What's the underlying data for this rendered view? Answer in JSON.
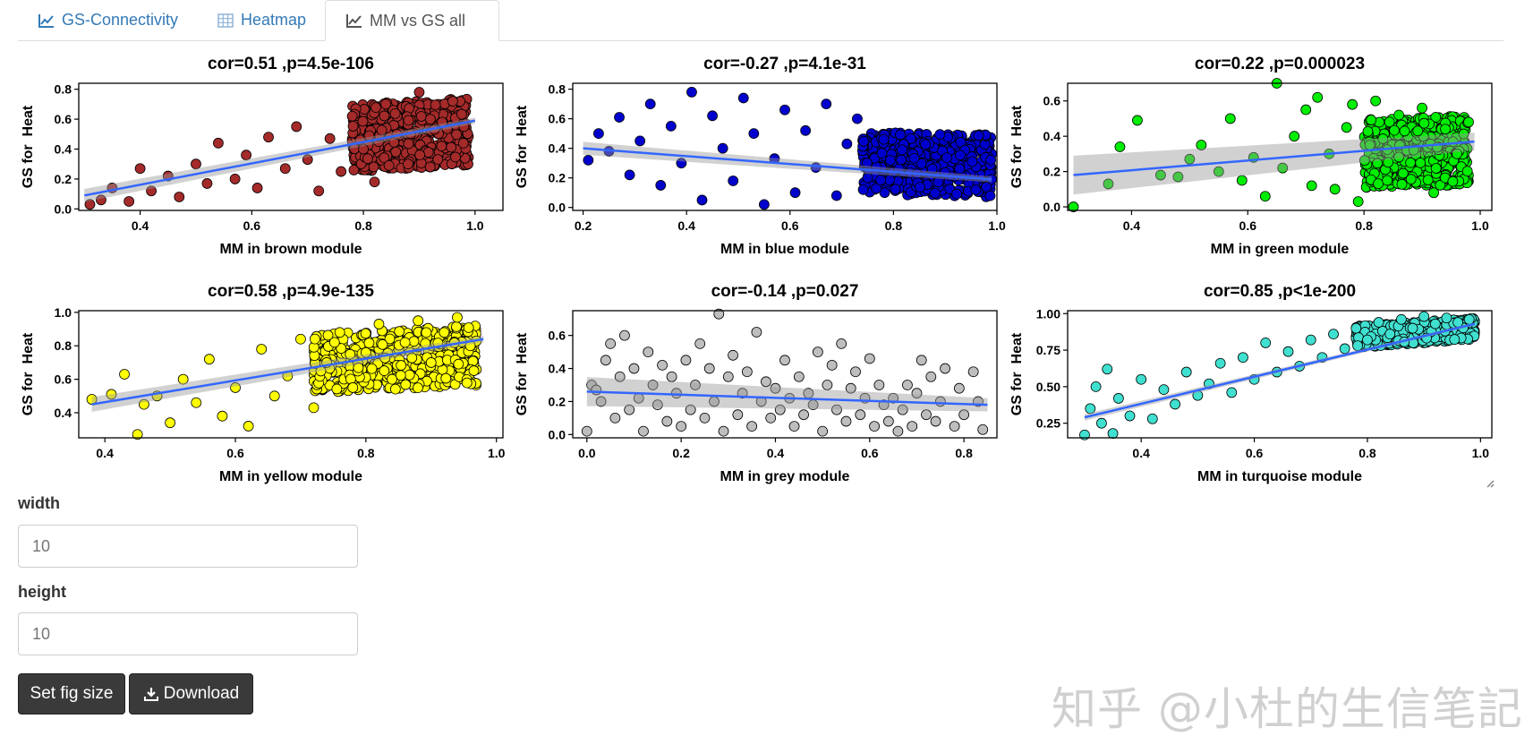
{
  "tabs": [
    {
      "label": "GS-Connectivity",
      "icon": "line-chart-icon"
    },
    {
      "label": "Heatmap",
      "icon": "grid-icon"
    },
    {
      "label": "MM vs GS all",
      "icon": "line-chart-icon"
    }
  ],
  "active_tab": 2,
  "form": {
    "width_label": "width",
    "width_placeholder": "10",
    "height_label": "height",
    "height_placeholder": "10"
  },
  "buttons": {
    "set_size": "Set fig size",
    "download": "Download"
  },
  "watermark": "知乎 @小杜的生信笔記",
  "chart_data": [
    {
      "type": "scatter",
      "module": "brown",
      "color": "#a52a2a",
      "title": "cor=0.51 ,p=4.5e-106",
      "xlabel": "MM in brown module",
      "ylabel": "GS for  Heat",
      "xlim": [
        0.29,
        1.05
      ],
      "ylim": [
        -0.01,
        0.84
      ],
      "xticks": [
        0.4,
        0.6,
        0.8,
        1.0
      ],
      "yticks": [
        0.0,
        0.2,
        0.4,
        0.6,
        0.8
      ],
      "trend": {
        "x1": 0.3,
        "y1": 0.09,
        "x2": 1.0,
        "y2": 0.59
      },
      "band": 0.02,
      "points": [
        [
          0.31,
          0.03
        ],
        [
          0.33,
          0.06
        ],
        [
          0.35,
          0.14
        ],
        [
          0.38,
          0.05
        ],
        [
          0.4,
          0.27
        ],
        [
          0.42,
          0.12
        ],
        [
          0.45,
          0.22
        ],
        [
          0.47,
          0.08
        ],
        [
          0.5,
          0.3
        ],
        [
          0.52,
          0.17
        ],
        [
          0.54,
          0.44
        ],
        [
          0.57,
          0.2
        ],
        [
          0.59,
          0.36
        ],
        [
          0.61,
          0.14
        ],
        [
          0.63,
          0.48
        ],
        [
          0.66,
          0.27
        ],
        [
          0.68,
          0.55
        ],
        [
          0.7,
          0.33
        ],
        [
          0.72,
          0.12
        ],
        [
          0.74,
          0.47
        ],
        [
          0.76,
          0.25
        ],
        [
          0.78,
          0.62
        ],
        [
          0.8,
          0.4
        ],
        [
          0.82,
          0.18
        ],
        [
          0.84,
          0.7
        ],
        [
          0.86,
          0.5
        ],
        [
          0.88,
          0.3
        ],
        [
          0.9,
          0.78
        ],
        [
          0.92,
          0.6
        ],
        [
          0.94,
          0.42
        ],
        [
          0.96,
          0.72
        ],
        [
          0.98,
          0.55
        ]
      ],
      "fill": {
        "x1": 0.78,
        "x2": 0.99,
        "y1": 0.17,
        "y2": 0.81
      }
    },
    {
      "type": "scatter",
      "module": "blue",
      "color": "#0000cd",
      "title": "cor=-0.27 ,p=4.1e-31",
      "xlabel": "MM in blue module",
      "ylabel": "GS for  Heat",
      "xlim": [
        0.18,
        1.0
      ],
      "ylim": [
        -0.02,
        0.84
      ],
      "xticks": [
        0.2,
        0.4,
        0.6,
        0.8,
        1.0
      ],
      "yticks": [
        0.0,
        0.2,
        0.4,
        0.6,
        0.8
      ],
      "trend": {
        "x1": 0.2,
        "y1": 0.4,
        "x2": 0.99,
        "y2": 0.19
      },
      "band": 0.02,
      "points": [
        [
          0.21,
          0.32
        ],
        [
          0.23,
          0.5
        ],
        [
          0.25,
          0.38
        ],
        [
          0.27,
          0.61
        ],
        [
          0.29,
          0.22
        ],
        [
          0.31,
          0.45
        ],
        [
          0.33,
          0.7
        ],
        [
          0.35,
          0.15
        ],
        [
          0.37,
          0.55
        ],
        [
          0.39,
          0.3
        ],
        [
          0.41,
          0.78
        ],
        [
          0.43,
          0.05
        ],
        [
          0.45,
          0.62
        ],
        [
          0.47,
          0.4
        ],
        [
          0.49,
          0.18
        ],
        [
          0.51,
          0.74
        ],
        [
          0.53,
          0.5
        ],
        [
          0.55,
          0.02
        ],
        [
          0.57,
          0.33
        ],
        [
          0.59,
          0.66
        ],
        [
          0.61,
          0.1
        ],
        [
          0.63,
          0.52
        ],
        [
          0.65,
          0.27
        ],
        [
          0.67,
          0.7
        ],
        [
          0.69,
          0.08
        ],
        [
          0.71,
          0.43
        ],
        [
          0.73,
          0.6
        ],
        [
          0.75,
          0.2
        ]
      ],
      "fill": {
        "x1": 0.74,
        "x2": 0.99,
        "y1": 0.02,
        "y2": 0.62
      }
    },
    {
      "type": "scatter",
      "module": "green",
      "color": "#00ee00",
      "title": "cor=0.22 ,p=0.000023",
      "xlabel": "MM in green module",
      "ylabel": "GS for  Heat",
      "xlim": [
        0.29,
        1.02
      ],
      "ylim": [
        -0.02,
        0.7
      ],
      "xticks": [
        0.4,
        0.6,
        0.8,
        1.0
      ],
      "yticks": [
        0.0,
        0.2,
        0.4,
        0.6
      ],
      "trend": {
        "x1": 0.3,
        "y1": 0.18,
        "x2": 0.99,
        "y2": 0.37
      },
      "band": 0.05,
      "points": [
        [
          0.3,
          0.0
        ],
        [
          0.36,
          0.13
        ],
        [
          0.38,
          0.34
        ],
        [
          0.41,
          0.49
        ],
        [
          0.45,
          0.18
        ],
        [
          0.48,
          0.17
        ],
        [
          0.5,
          0.27
        ],
        [
          0.52,
          0.35
        ],
        [
          0.55,
          0.2
        ],
        [
          0.57,
          0.5
        ],
        [
          0.59,
          0.15
        ],
        [
          0.61,
          0.28
        ],
        [
          0.63,
          0.06
        ],
        [
          0.65,
          0.7
        ],
        [
          0.66,
          0.22
        ],
        [
          0.68,
          0.4
        ],
        [
          0.7,
          0.55
        ],
        [
          0.71,
          0.12
        ],
        [
          0.72,
          0.62
        ],
        [
          0.74,
          0.3
        ],
        [
          0.75,
          0.1
        ],
        [
          0.77,
          0.45
        ],
        [
          0.78,
          0.58
        ],
        [
          0.79,
          0.03
        ],
        [
          0.81,
          0.35
        ],
        [
          0.82,
          0.6
        ],
        [
          0.84,
          0.15
        ],
        [
          0.86,
          0.52
        ],
        [
          0.88,
          0.25
        ],
        [
          0.9,
          0.56
        ],
        [
          0.92,
          0.08
        ],
        [
          0.94,
          0.44
        ],
        [
          0.96,
          0.3
        ],
        [
          0.98,
          0.48
        ]
      ],
      "fill": {
        "x1": 0.8,
        "x2": 0.98,
        "y1": 0.02,
        "y2": 0.58
      }
    },
    {
      "type": "scatter",
      "module": "yellow",
      "color": "#ffff00",
      "title": "cor=0.58 ,p=4.9e-135",
      "xlabel": "MM in yellow module",
      "ylabel": "GS for  Heat",
      "xlim": [
        0.36,
        1.01
      ],
      "ylim": [
        0.25,
        1.01
      ],
      "xticks": [
        0.4,
        0.6,
        0.8,
        1.0
      ],
      "yticks": [
        0.4,
        0.6,
        0.8,
        1.0
      ],
      "trend": {
        "x1": 0.38,
        "y1": 0.45,
        "x2": 0.98,
        "y2": 0.84
      },
      "band": 0.02,
      "points": [
        [
          0.38,
          0.48
        ],
        [
          0.41,
          0.51
        ],
        [
          0.43,
          0.63
        ],
        [
          0.45,
          0.27
        ],
        [
          0.46,
          0.45
        ],
        [
          0.48,
          0.5
        ],
        [
          0.5,
          0.34
        ],
        [
          0.52,
          0.6
        ],
        [
          0.54,
          0.46
        ],
        [
          0.56,
          0.72
        ],
        [
          0.58,
          0.38
        ],
        [
          0.6,
          0.55
        ],
        [
          0.62,
          0.32
        ],
        [
          0.64,
          0.78
        ],
        [
          0.66,
          0.5
        ],
        [
          0.68,
          0.62
        ],
        [
          0.7,
          0.84
        ],
        [
          0.72,
          0.43
        ],
        [
          0.74,
          0.7
        ],
        [
          0.76,
          0.88
        ],
        [
          0.78,
          0.55
        ],
        [
          0.8,
          0.76
        ],
        [
          0.82,
          0.93
        ],
        [
          0.84,
          0.6
        ],
        [
          0.86,
          0.82
        ],
        [
          0.88,
          0.95
        ],
        [
          0.9,
          0.7
        ],
        [
          0.92,
          0.88
        ],
        [
          0.94,
          0.97
        ],
        [
          0.96,
          0.8
        ]
      ],
      "fill": {
        "x1": 0.72,
        "x2": 0.97,
        "y1": 0.45,
        "y2": 0.96
      }
    },
    {
      "type": "scatter",
      "module": "grey",
      "color": "#bebebe",
      "title": "cor=-0.14 ,p=0.027",
      "xlabel": "MM in grey module",
      "ylabel": "GS for  Heat",
      "xlim": [
        -0.03,
        0.87
      ],
      "ylim": [
        -0.02,
        0.75
      ],
      "xticks": [
        0.0,
        0.2,
        0.4,
        0.6,
        0.8
      ],
      "yticks": [
        0.0,
        0.2,
        0.4,
        0.6
      ],
      "trend": {
        "x1": 0.0,
        "y1": 0.26,
        "x2": 0.85,
        "y2": 0.18
      },
      "band": 0.04,
      "points": [
        [
          0.0,
          0.02
        ],
        [
          0.01,
          0.3
        ],
        [
          0.02,
          0.27
        ],
        [
          0.03,
          0.2
        ],
        [
          0.04,
          0.45
        ],
        [
          0.05,
          0.55
        ],
        [
          0.06,
          0.1
        ],
        [
          0.07,
          0.35
        ],
        [
          0.08,
          0.6
        ],
        [
          0.09,
          0.15
        ],
        [
          0.1,
          0.4
        ],
        [
          0.11,
          0.22
        ],
        [
          0.12,
          0.02
        ],
        [
          0.13,
          0.5
        ],
        [
          0.14,
          0.3
        ],
        [
          0.15,
          0.18
        ],
        [
          0.16,
          0.42
        ],
        [
          0.17,
          0.08
        ],
        [
          0.18,
          0.35
        ],
        [
          0.19,
          0.25
        ],
        [
          0.2,
          0.05
        ],
        [
          0.21,
          0.45
        ],
        [
          0.22,
          0.15
        ],
        [
          0.23,
          0.3
        ],
        [
          0.24,
          0.55
        ],
        [
          0.25,
          0.1
        ],
        [
          0.26,
          0.4
        ],
        [
          0.27,
          0.2
        ],
        [
          0.28,
          0.73
        ],
        [
          0.29,
          0.02
        ],
        [
          0.3,
          0.35
        ],
        [
          0.31,
          0.48
        ],
        [
          0.32,
          0.12
        ],
        [
          0.33,
          0.25
        ],
        [
          0.34,
          0.38
        ],
        [
          0.35,
          0.05
        ],
        [
          0.36,
          0.62
        ],
        [
          0.37,
          0.2
        ],
        [
          0.38,
          0.32
        ],
        [
          0.39,
          0.1
        ],
        [
          0.4,
          0.28
        ],
        [
          0.41,
          0.15
        ],
        [
          0.42,
          0.45
        ],
        [
          0.43,
          0.22
        ],
        [
          0.44,
          0.05
        ],
        [
          0.45,
          0.35
        ],
        [
          0.46,
          0.12
        ],
        [
          0.47,
          0.25
        ],
        [
          0.48,
          0.18
        ],
        [
          0.49,
          0.5
        ],
        [
          0.5,
          0.02
        ],
        [
          0.51,
          0.3
        ],
        [
          0.52,
          0.42
        ],
        [
          0.53,
          0.15
        ],
        [
          0.54,
          0.55
        ],
        [
          0.55,
          0.08
        ],
        [
          0.56,
          0.28
        ],
        [
          0.57,
          0.38
        ],
        [
          0.58,
          0.12
        ],
        [
          0.59,
          0.22
        ],
        [
          0.6,
          0.46
        ],
        [
          0.61,
          0.05
        ],
        [
          0.62,
          0.3
        ],
        [
          0.63,
          0.18
        ],
        [
          0.64,
          0.08
        ],
        [
          0.65,
          0.22
        ],
        [
          0.66,
          0.02
        ],
        [
          0.67,
          0.15
        ],
        [
          0.68,
          0.3
        ],
        [
          0.69,
          0.05
        ],
        [
          0.7,
          0.25
        ],
        [
          0.71,
          0.45
        ],
        [
          0.72,
          0.12
        ],
        [
          0.73,
          0.35
        ],
        [
          0.74,
          0.08
        ],
        [
          0.75,
          0.2
        ],
        [
          0.76,
          0.4
        ],
        [
          0.78,
          0.05
        ],
        [
          0.79,
          0.28
        ],
        [
          0.8,
          0.12
        ],
        [
          0.82,
          0.38
        ],
        [
          0.83,
          0.2
        ],
        [
          0.84,
          0.03
        ]
      ]
    },
    {
      "type": "scatter",
      "module": "turquoise",
      "color": "#40e0d0",
      "title": "cor=0.85 ,p<1e-200",
      "xlabel": "MM in turquoise module",
      "ylabel": "GS for  Heat",
      "xlim": [
        0.27,
        1.02
      ],
      "ylim": [
        0.15,
        1.02
      ],
      "xticks": [
        0.4,
        0.6,
        0.8,
        1.0
      ],
      "yticks": [
        0.25,
        0.5,
        0.75,
        1.0
      ],
      "trend": {
        "x1": 0.3,
        "y1": 0.29,
        "x2": 0.99,
        "y2": 0.93
      },
      "band": 0.01,
      "points": [
        [
          0.3,
          0.17
        ],
        [
          0.31,
          0.35
        ],
        [
          0.32,
          0.5
        ],
        [
          0.33,
          0.25
        ],
        [
          0.34,
          0.62
        ],
        [
          0.35,
          0.18
        ],
        [
          0.36,
          0.42
        ],
        [
          0.38,
          0.3
        ],
        [
          0.4,
          0.55
        ],
        [
          0.42,
          0.28
        ],
        [
          0.44,
          0.48
        ],
        [
          0.46,
          0.38
        ],
        [
          0.48,
          0.6
        ],
        [
          0.5,
          0.44
        ],
        [
          0.52,
          0.52
        ],
        [
          0.54,
          0.66
        ],
        [
          0.56,
          0.46
        ],
        [
          0.58,
          0.7
        ],
        [
          0.6,
          0.55
        ],
        [
          0.62,
          0.8
        ],
        [
          0.64,
          0.6
        ],
        [
          0.66,
          0.74
        ],
        [
          0.68,
          0.64
        ],
        [
          0.7,
          0.82
        ],
        [
          0.72,
          0.7
        ],
        [
          0.74,
          0.86
        ],
        [
          0.76,
          0.76
        ],
        [
          0.78,
          0.9
        ],
        [
          0.8,
          0.82
        ],
        [
          0.82,
          0.94
        ],
        [
          0.84,
          0.86
        ],
        [
          0.86,
          0.96
        ],
        [
          0.88,
          0.9
        ],
        [
          0.9,
          0.98
        ],
        [
          0.92,
          0.93
        ],
        [
          0.94,
          0.97
        ],
        [
          0.96,
          0.94
        ],
        [
          0.98,
          0.96
        ]
      ],
      "fill": {
        "x1": 0.78,
        "x2": 0.99,
        "y1": 0.78,
        "y2": 0.99
      }
    }
  ]
}
